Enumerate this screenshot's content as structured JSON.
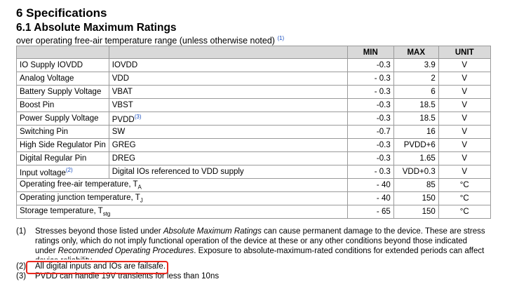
{
  "heading": "6 Specifications",
  "subheading": "6.1 Absolute Maximum Ratings",
  "subtitle": "over operating free-air temperature range (unless otherwise noted)",
  "subtitle_ref": "(1)",
  "table": {
    "headers": {
      "min": "MIN",
      "max": "MAX",
      "unit": "UNIT"
    },
    "rows": [
      {
        "name": "IO Supply IOVDD",
        "symbol": "IOVDD",
        "min": "-0.3",
        "max": "3.9",
        "unit": "V"
      },
      {
        "name": "Analog Voltage",
        "symbol": "VDD",
        "min": "- 0.3",
        "max": "2",
        "unit": "V"
      },
      {
        "name": "Battery Supply Voltage",
        "symbol": "VBAT",
        "min": "- 0.3",
        "max": "6",
        "unit": "V"
      },
      {
        "name": "Boost Pin",
        "symbol": "VBST",
        "min": "-0.3",
        "max": "18.5",
        "unit": "V"
      },
      {
        "name": "Power Supply Voltage",
        "symbol": "PVDD",
        "symbol_ref": "(3)",
        "min": "-0.3",
        "max": "18.5",
        "unit": "V"
      },
      {
        "name": "Switching Pin",
        "symbol": "SW",
        "min": "-0.7",
        "max": "16",
        "unit": "V"
      },
      {
        "name": "High Side Regulator Pin",
        "symbol": "GREG",
        "min": "-0.3",
        "max": "PVDD+6",
        "unit": "V"
      },
      {
        "name": "Digital Regular Pin",
        "symbol": "DREG",
        "min": "-0.3",
        "max": "1.65",
        "unit": "V"
      },
      {
        "name": "Input voltage",
        "name_ref": "(2)",
        "symbol": "Digital IOs referenced to VDD supply",
        "min": "- 0.3",
        "max": "VDD+0.3",
        "unit": "V"
      },
      {
        "name": "Operating free-air temperature, T",
        "name_sub": "A",
        "min": "- 40",
        "max": "85",
        "unit": "°C"
      },
      {
        "name": "Operating junction temperature, T",
        "name_sub": "J",
        "min": "- 40",
        "max": "150",
        "unit": "°C"
      },
      {
        "name": "Storage temperature, T",
        "name_sub": "stg",
        "min": "- 65",
        "max": "150",
        "unit": "°C"
      }
    ]
  },
  "notes": [
    {
      "num": "(1)",
      "text_a": "Stresses beyond those listed under ",
      "text_em1": "Absolute Maximum Ratings",
      "text_b": " can cause permanent damage to the device. These are stress ratings only, which do not imply functional operation of the device at these or any other conditions beyond those indicated under ",
      "text_em2": "Recommended Operating Procedures",
      "text_c": ". Exposure to absolute-maximum-rated conditions for extended periods can affect device reliability."
    },
    {
      "num": "(2)",
      "text": "All digital inputs and IOs are failsafe."
    },
    {
      "num": "(3)",
      "text": "PVDD can handle 19V transients for less than 10ns"
    }
  ]
}
